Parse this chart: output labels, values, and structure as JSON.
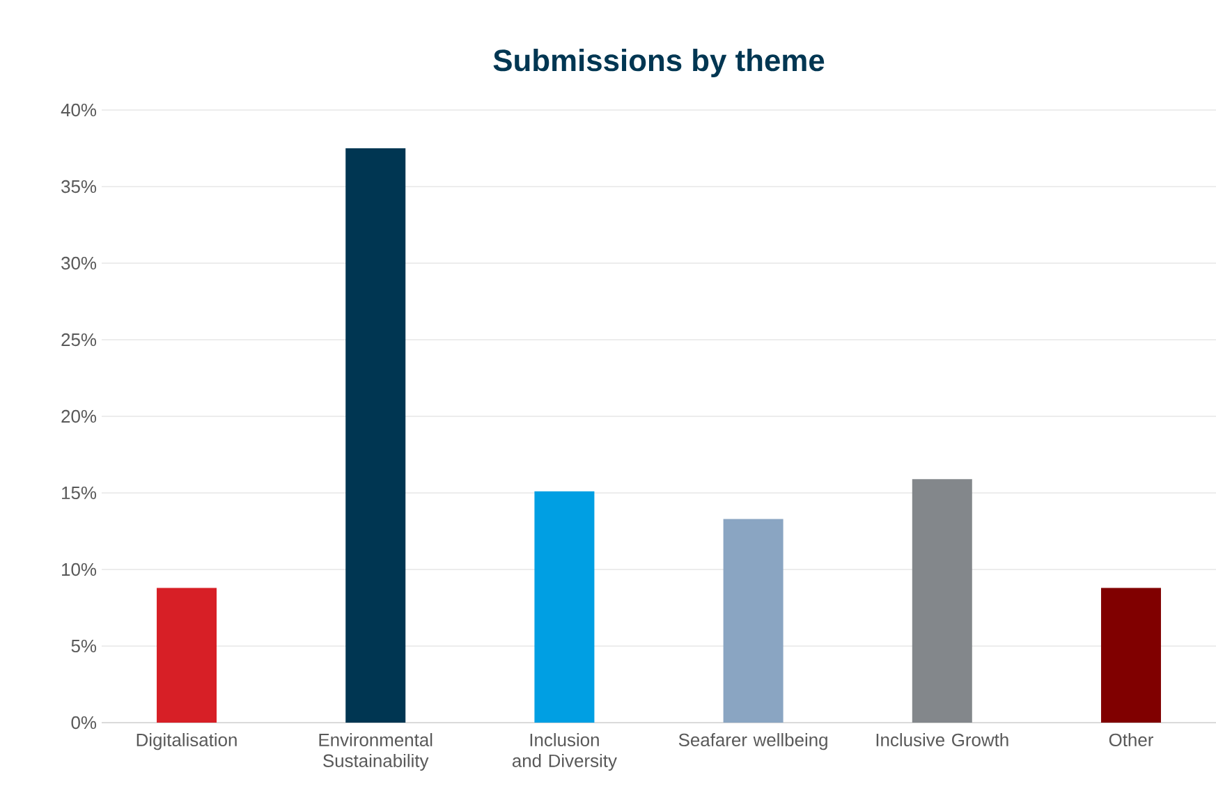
{
  "chart_data": {
    "type": "bar",
    "title": "Submissions by theme",
    "categories": [
      "Digitalisation",
      "Environmental Sustainability",
      "Inclusion and Diversity",
      "Seafarer wellbeing",
      "Inclusive Growth",
      "Other"
    ],
    "values": [
      8.8,
      37.5,
      15.1,
      13.3,
      15.9,
      8.8
    ],
    "colors": [
      "#d71f26",
      "#003652",
      "#009fe3",
      "#8aa5c2",
      "#83878b",
      "#800000"
    ],
    "ylim": [
      0,
      40
    ],
    "yticks": [
      {
        "value": 0,
        "label": "0%"
      },
      {
        "value": 5,
        "label": "5%"
      },
      {
        "value": 10,
        "label": "10%"
      },
      {
        "value": 15,
        "label": "15%"
      },
      {
        "value": 20,
        "label": "20%"
      },
      {
        "value": 25,
        "label": "25%"
      },
      {
        "value": 30,
        "label": "30%"
      },
      {
        "value": 35,
        "label": "35%"
      },
      {
        "value": 40,
        "label": "40%"
      }
    ],
    "grid": "y"
  }
}
